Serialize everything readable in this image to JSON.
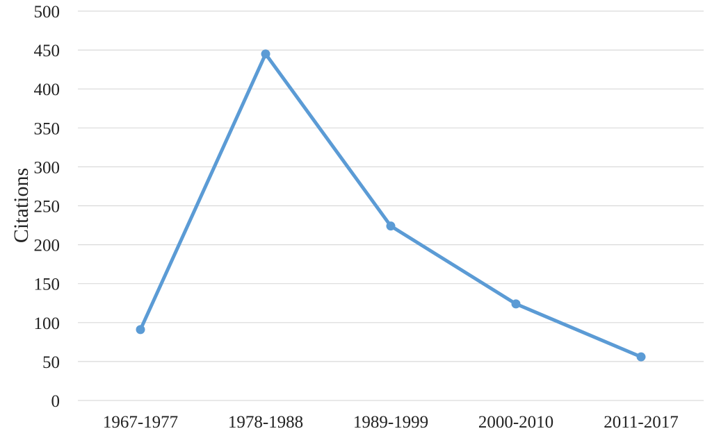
{
  "chart_data": {
    "type": "line",
    "title": "",
    "xlabel": "",
    "ylabel": "Citations",
    "categories": [
      "1967-1977",
      "1978-1988",
      "1989-1999",
      "2000-2010",
      "2011-2017"
    ],
    "series": [
      {
        "values": [
          91,
          445,
          224,
          124,
          56
        ]
      }
    ],
    "ylim": [
      0,
      500
    ],
    "yticks": [
      "0",
      "50",
      "100",
      "150",
      "200",
      "250",
      "300",
      "350",
      "400",
      "450",
      "500"
    ],
    "grid": "horizontal",
    "legend": "none",
    "line_color": "#5b9bd5"
  }
}
